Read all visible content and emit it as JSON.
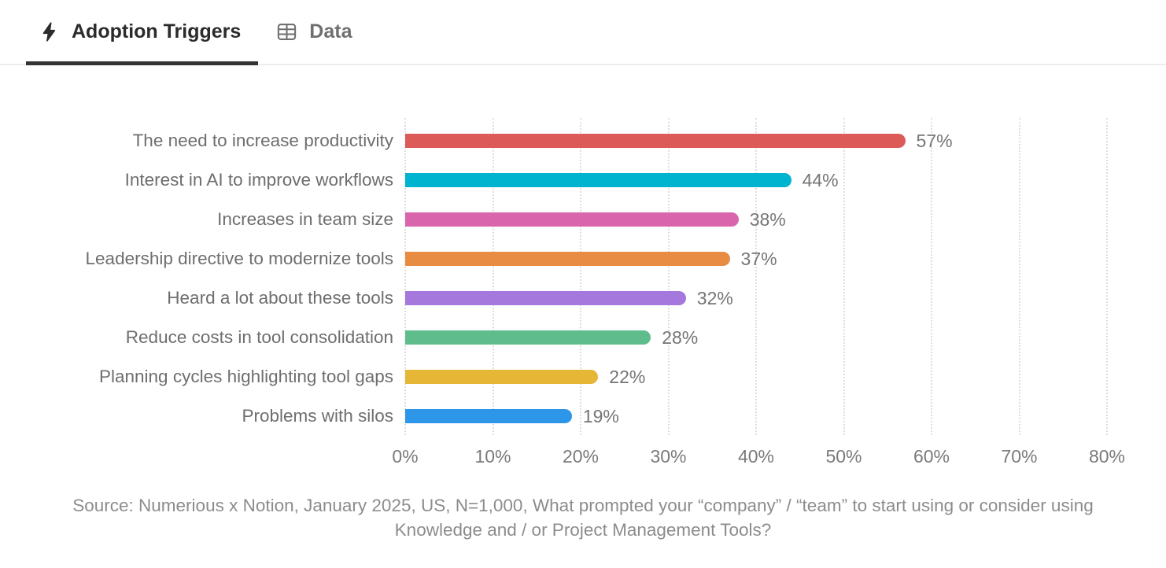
{
  "header": {
    "tabs": [
      {
        "label": "Adoption Triggers",
        "icon": "lightning-bolt-icon",
        "active": true
      },
      {
        "label": "Data",
        "icon": "table-icon",
        "active": false
      }
    ]
  },
  "chart_data": {
    "type": "bar",
    "orientation": "horizontal",
    "title": "",
    "categories": [
      "The need to increase productivity",
      "Interest in AI to improve workflows",
      "Increases in team size",
      "Leadership directive to modernize tools",
      "Heard a lot about these tools",
      "Reduce costs in tool consolidation",
      "Planning cycles highlighting tool gaps",
      "Problems with silos"
    ],
    "values": [
      57,
      44,
      38,
      37,
      32,
      28,
      22,
      19
    ],
    "value_labels": [
      "57%",
      "44%",
      "38%",
      "37%",
      "32%",
      "28%",
      "22%",
      "19%"
    ],
    "bar_colors": [
      "#DC5B58",
      "#00B3CE",
      "#D966AC",
      "#E98C43",
      "#A478DC",
      "#5FBD8D",
      "#E6B637",
      "#2E96E8"
    ],
    "x_tick_labels": [
      "0%",
      "10%",
      "20%",
      "30%",
      "40%",
      "50%",
      "60%",
      "70%",
      "80%"
    ],
    "xlim": [
      0,
      80
    ],
    "xlabel": "",
    "ylabel": "",
    "grid": "vertical-dotted",
    "legend": "none"
  },
  "source_note": "Source: Numerious x Notion, January 2025, US, N=1,000, What prompted your “company” / “team” to start using or consider using Knowledge and / or Project Management Tools?",
  "theme": {
    "active_tab_color": "#2B2B2B",
    "inactive_tab_color": "#6F6F6F",
    "tab_underline_color": "#333333",
    "grid_color": "#DEDEDE",
    "category_label_color": "#6E6E6E",
    "value_label_color": "#757575",
    "tick_label_color": "#7A7A7A",
    "source_color": "#8C8C8C"
  }
}
